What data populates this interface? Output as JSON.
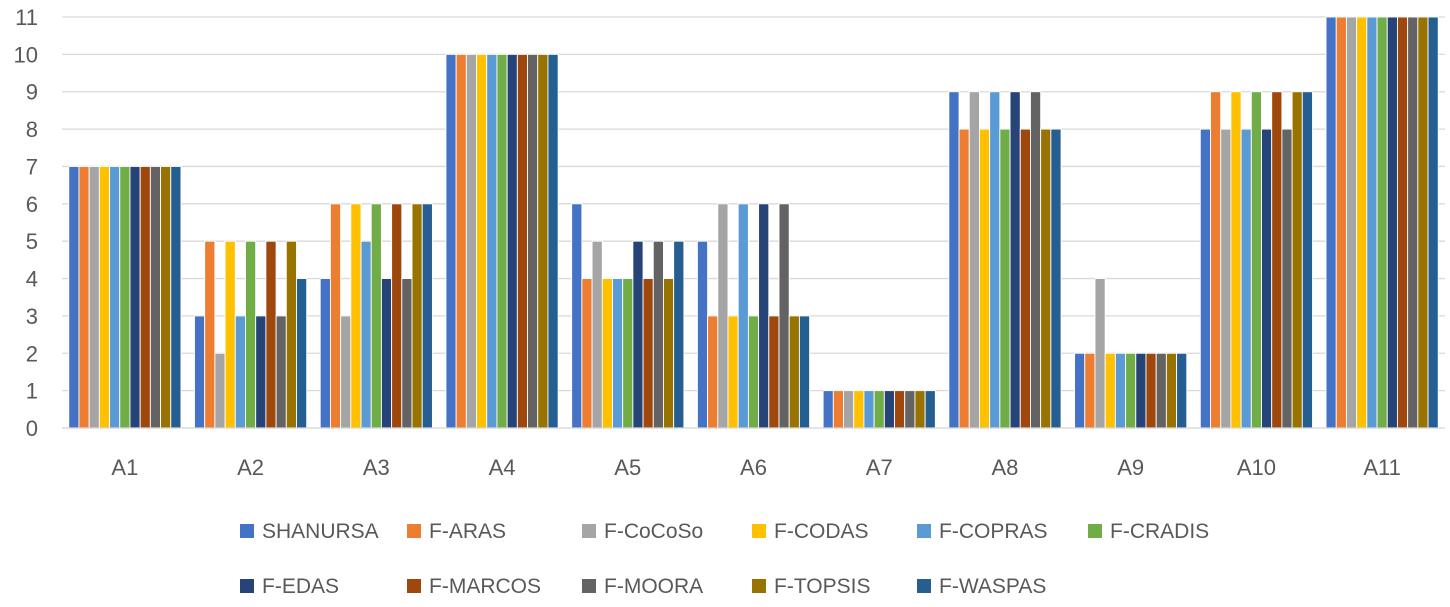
{
  "chart_data": {
    "type": "bar",
    "categories": [
      "A1",
      "A2",
      "A3",
      "A4",
      "A5",
      "A6",
      "A7",
      "A8",
      "A9",
      "A10",
      "A11"
    ],
    "ylim": [
      0,
      11
    ],
    "yticks": [
      "0",
      "1",
      "2",
      "3",
      "4",
      "5",
      "6",
      "7",
      "8",
      "9",
      "10",
      "11"
    ],
    "grid": true,
    "legend_position": "bottom",
    "series": [
      {
        "name": "SHANURSA",
        "color": "#4472C4",
        "values": [
          7,
          3,
          4,
          10,
          6,
          5,
          1,
          9,
          2,
          8,
          11
        ]
      },
      {
        "name": "F-ARAS",
        "color": "#ED7D31",
        "values": [
          7,
          5,
          6,
          10,
          4,
          3,
          1,
          8,
          2,
          9,
          11
        ]
      },
      {
        "name": "F-CoCoSo",
        "color": "#A5A5A5",
        "values": [
          7,
          2,
          3,
          10,
          5,
          6,
          1,
          9,
          4,
          8,
          11
        ]
      },
      {
        "name": "F-CODAS",
        "color": "#FFC000",
        "values": [
          7,
          5,
          6,
          10,
          4,
          3,
          1,
          8,
          2,
          9,
          11
        ]
      },
      {
        "name": "F-COPRAS",
        "color": "#5B9BD5",
        "values": [
          7,
          3,
          5,
          10,
          4,
          6,
          1,
          9,
          2,
          8,
          11
        ]
      },
      {
        "name": "F-CRADIS",
        "color": "#70AD47",
        "values": [
          7,
          5,
          6,
          10,
          4,
          3,
          1,
          8,
          2,
          9,
          11
        ]
      },
      {
        "name": "F-EDAS",
        "color": "#264478",
        "values": [
          7,
          3,
          4,
          10,
          5,
          6,
          1,
          9,
          2,
          8,
          11
        ]
      },
      {
        "name": "F-MARCOS",
        "color": "#9E480E",
        "values": [
          7,
          5,
          6,
          10,
          4,
          3,
          1,
          8,
          2,
          9,
          11
        ]
      },
      {
        "name": "F-MOORA",
        "color": "#636363",
        "values": [
          7,
          3,
          4,
          10,
          5,
          6,
          1,
          9,
          2,
          8,
          11
        ]
      },
      {
        "name": "F-TOPSIS",
        "color": "#997300",
        "values": [
          7,
          5,
          6,
          10,
          4,
          3,
          1,
          8,
          2,
          9,
          11
        ]
      },
      {
        "name": "F-WASPAS",
        "color": "#255E91",
        "values": [
          7,
          4,
          6,
          10,
          5,
          3,
          1,
          8,
          2,
          9,
          11
        ]
      }
    ]
  }
}
